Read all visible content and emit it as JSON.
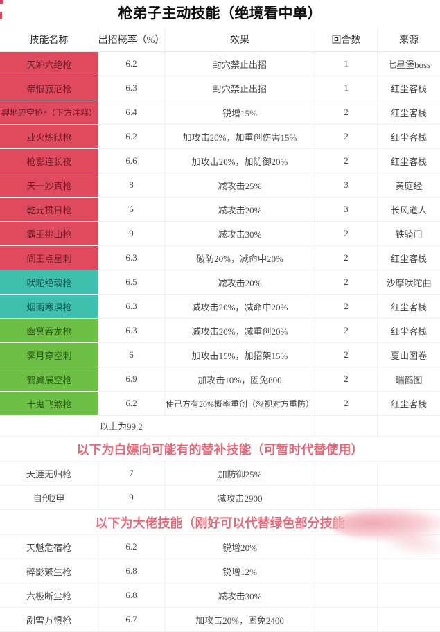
{
  "title": "枪弟子主动技能（绝境看中单）",
  "colors": {
    "red": "#e04a5f",
    "teal": "#3fbfae",
    "green": "#6dbf45",
    "pink": "#e5697a"
  },
  "table": {
    "headers": [
      "技能名称",
      "出招概率（%）",
      "效果",
      "回合数",
      "来源"
    ],
    "main_rows": [
      {
        "name": "天妒六绝枪",
        "prob": "6.2",
        "effect": "封穴禁止出招",
        "rounds": "1",
        "source": "七星堡boss",
        "color": "red"
      },
      {
        "name": "帝恨寂厄枪",
        "prob": "6.3",
        "effect": "封穴禁止出招",
        "rounds": "1",
        "source": "红尘客栈",
        "color": "red"
      },
      {
        "name": "裂地碎空枪*（下方注释）",
        "prob": "6.4",
        "effect": "锐增15%",
        "rounds": "2",
        "source": "红尘客栈",
        "color": "red"
      },
      {
        "name": "业火炼狱枪",
        "prob": "6.2",
        "effect": "加攻击20%，加重创伤害15%",
        "rounds": "2",
        "source": "红尘客栈",
        "color": "red"
      },
      {
        "name": "枪影连长夜",
        "prob": "6.6",
        "effect": "加攻击20%，加防御20%",
        "rounds": "2",
        "source": "红尘客栈",
        "color": "red"
      },
      {
        "name": "天一妙真枪",
        "prob": "8",
        "effect": "减攻击25%",
        "rounds": "3",
        "source": "黄庭经",
        "color": "red"
      },
      {
        "name": "乾元贯日枪",
        "prob": "6",
        "effect": "减攻击20%",
        "rounds": "3",
        "source": "长风道人",
        "color": "red"
      },
      {
        "name": "霸王挑山枪",
        "prob": "9",
        "effect": "减攻击30%",
        "rounds": "2",
        "source": "铁骑门",
        "color": "red"
      },
      {
        "name": "阎王点星刺",
        "prob": "6.3",
        "effect": "破防20%，减命中20%",
        "rounds": "2",
        "source": "红尘客栈",
        "color": "red"
      },
      {
        "name": "吠陀绝魂枪",
        "prob": "6.5",
        "effect": "减攻击20%",
        "rounds": "2",
        "source": "沙摩吠陀曲",
        "color": "teal"
      },
      {
        "name": "烟雨寒溟枪",
        "prob": "6.3",
        "effect": "减攻击20%，减命中20%",
        "rounds": "2",
        "source": "红尘客栈",
        "color": "teal"
      },
      {
        "name": "幽冥吞龙枪",
        "prob": "6.3",
        "effect": "减攻击20%，减重创20%",
        "rounds": "2",
        "source": "红尘客栈",
        "color": "green"
      },
      {
        "name": "霁月穿空刺",
        "prob": "6",
        "effect": "加攻击15%，加招架15%",
        "rounds": "2",
        "source": "夏山图卷",
        "color": "green"
      },
      {
        "name": "鹤翼展空枪",
        "prob": "6.9",
        "effect": "加攻击10%，固免800",
        "rounds": "2",
        "source": "瑞鹤图",
        "color": "green"
      },
      {
        "name": "十鬼飞煞枪",
        "prob": "6.2",
        "effect": "使己方有20%概率重创（忽视对方重防）",
        "rounds": "2",
        "source": "红尘客栈",
        "color": "green"
      }
    ],
    "total_row": "以上为99.2",
    "section1": {
      "heading": "以下为白嫖向可能有的替补技能（可暂时代替使用）",
      "rows": [
        {
          "name": "天涯无归枪",
          "prob": "7",
          "effect": "加防御25%",
          "rounds": "",
          "source": ""
        },
        {
          "name": "自创2甲",
          "prob": "9",
          "effect": "减攻击2900",
          "rounds": "",
          "source": ""
        }
      ]
    },
    "section2": {
      "heading": "以下为大佬技能（刚好可以代替绿色部分技能",
      "rows": [
        {
          "name": "天魁危宿枪",
          "prob": "6.2",
          "effect": "锐增20%",
          "rounds": "",
          "source": ""
        },
        {
          "name": "碎影繁生枪",
          "prob": "6.8",
          "effect": "锐增12%",
          "rounds": "",
          "source": ""
        },
        {
          "name": "六极断尘枪",
          "prob": "6.8",
          "effect": "减攻击30%",
          "rounds": "",
          "source": ""
        },
        {
          "name": "剐雪万惧枪",
          "prob": "6.7",
          "effect": "加攻击20%，固免2400",
          "rounds": "",
          "source": ""
        }
      ]
    }
  }
}
